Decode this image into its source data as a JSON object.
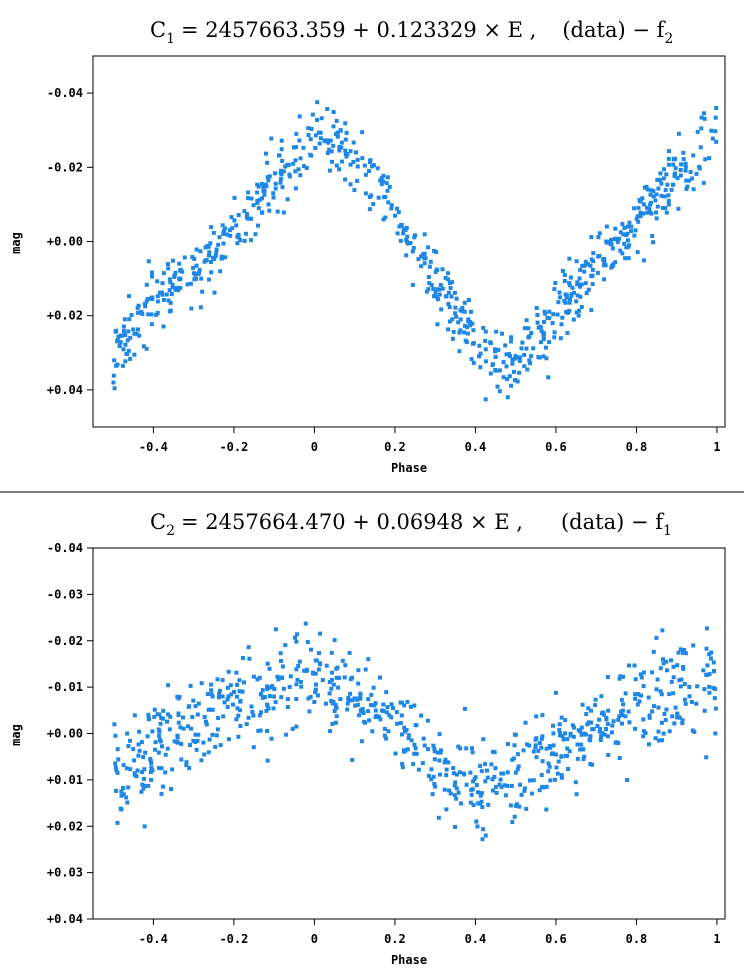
{
  "chart_data": [
    {
      "type": "scatter",
      "title": {
        "lhs_main": "C",
        "lhs_sub": "1",
        "equation": "= 2457663.359 + 0.123329 × E ,",
        "rhs_main": "(data) − f",
        "rhs_sub": "2"
      },
      "xlabel": "Phase",
      "ylabel": "mag",
      "xlim": [
        -0.55,
        1.02
      ],
      "ylim": [
        0.05,
        -0.05
      ],
      "y_inverted": true,
      "x_ticks": [
        -0.4,
        -0.2,
        0,
        0.2,
        0.4,
        0.6,
        0.8,
        1
      ],
      "x_tick_labels": [
        "-0.4",
        "-0.2",
        "0",
        "0.2",
        "0.4",
        "0.6",
        "0.8",
        "1"
      ],
      "y_ticks": [
        -0.04,
        -0.02,
        0.0,
        0.02,
        0.04
      ],
      "y_tick_labels": [
        "-0.04",
        "-0.02",
        "+0.00",
        "+0.02",
        "+0.04"
      ],
      "marker_color": "#1e87e6",
      "series": [
        {
          "x_range": [
            -0.5,
            1.0
          ],
          "curve_phase": [
            -0.5,
            -0.4,
            -0.3,
            -0.2,
            -0.1,
            0.0,
            0.1,
            0.2,
            0.3,
            0.4,
            0.5,
            0.6,
            0.7,
            0.8,
            0.9,
            1.0
          ],
          "curve_mag": [
            0.031,
            0.017,
            0.008,
            -0.003,
            -0.015,
            -0.03,
            -0.023,
            -0.008,
            0.01,
            0.027,
            0.033,
            0.019,
            0.006,
            -0.005,
            -0.018,
            -0.03
          ],
          "scatter": 0.008,
          "points": 780
        }
      ],
      "grid": false
    },
    {
      "type": "scatter",
      "title": {
        "lhs_main": "C",
        "lhs_sub": "2",
        "equation": "= 2457664.470 + 0.06948 × E ,",
        "rhs_main": "(data) − f",
        "rhs_sub": "1"
      },
      "xlabel": "Phase",
      "ylabel": "mag",
      "xlim": [
        -0.55,
        1.02
      ],
      "ylim": [
        0.04,
        -0.04
      ],
      "y_inverted": true,
      "x_ticks": [
        -0.4,
        -0.2,
        0,
        0.2,
        0.4,
        0.6,
        0.8,
        1
      ],
      "x_tick_labels": [
        "-0.4",
        "-0.2",
        "0",
        "0.2",
        "0.4",
        "0.6",
        "0.8",
        "1"
      ],
      "y_ticks": [
        -0.04,
        -0.03,
        -0.02,
        -0.01,
        0.0,
        0.01,
        0.02,
        0.03,
        0.04
      ],
      "y_tick_labels": [
        "-0.04",
        "-0.03",
        "-0.02",
        "-0.01",
        "+0.00",
        "+0.01",
        "+0.02",
        "+0.03",
        "+0.04"
      ],
      "marker_color": "#1e87e6",
      "series": [
        {
          "x_range": [
            -0.5,
            1.0
          ],
          "curve_phase": [
            -0.5,
            -0.4,
            -0.3,
            -0.2,
            -0.1,
            0.0,
            0.1,
            0.2,
            0.3,
            0.4,
            0.5,
            0.6,
            0.7,
            0.8,
            0.9,
            1.0
          ],
          "curve_mag": [
            0.01,
            0.004,
            -0.001,
            -0.006,
            -0.01,
            -0.012,
            -0.008,
            -0.002,
            0.006,
            0.012,
            0.01,
            0.005,
            0.0,
            -0.005,
            -0.01,
            -0.012
          ],
          "scatter": 0.009,
          "points": 780
        }
      ],
      "grid": false
    }
  ]
}
